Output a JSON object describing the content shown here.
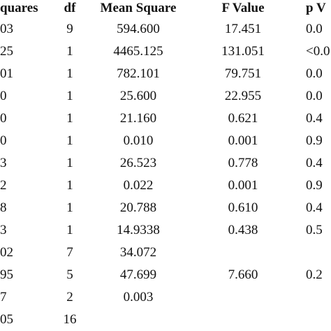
{
  "table": {
    "header": [
      "quares",
      "df",
      "Mean Square",
      "F Value",
      "p V"
    ],
    "rows": [
      [
        "03",
        "9",
        "594.600",
        "17.451",
        "0.0"
      ],
      [
        "25",
        "1",
        "4465.125",
        "131.051",
        "<0.0"
      ],
      [
        "01",
        "1",
        "782.101",
        "79.751",
        "0.0"
      ],
      [
        "0",
        "1",
        "25.600",
        "22.955",
        "0.0"
      ],
      [
        "0",
        "1",
        "21.160",
        "0.621",
        "0.4"
      ],
      [
        "0",
        "1",
        "0.010",
        "0.001",
        "0.9"
      ],
      [
        "3",
        "1",
        "26.523",
        "0.778",
        "0.4"
      ],
      [
        "2",
        "1",
        "0.022",
        "0.001",
        "0.9"
      ],
      [
        "8",
        "1",
        "20.788",
        "0.610",
        "0.4"
      ],
      [
        "3",
        "1",
        "14.9338",
        "0.438",
        "0.5"
      ],
      [
        "02",
        "7",
        "34.072"
      ],
      [
        "95",
        "5",
        "47.699",
        "7.660",
        "0.2"
      ],
      [
        "7",
        "2",
        "0.003"
      ],
      [
        "05",
        "16"
      ]
    ]
  }
}
